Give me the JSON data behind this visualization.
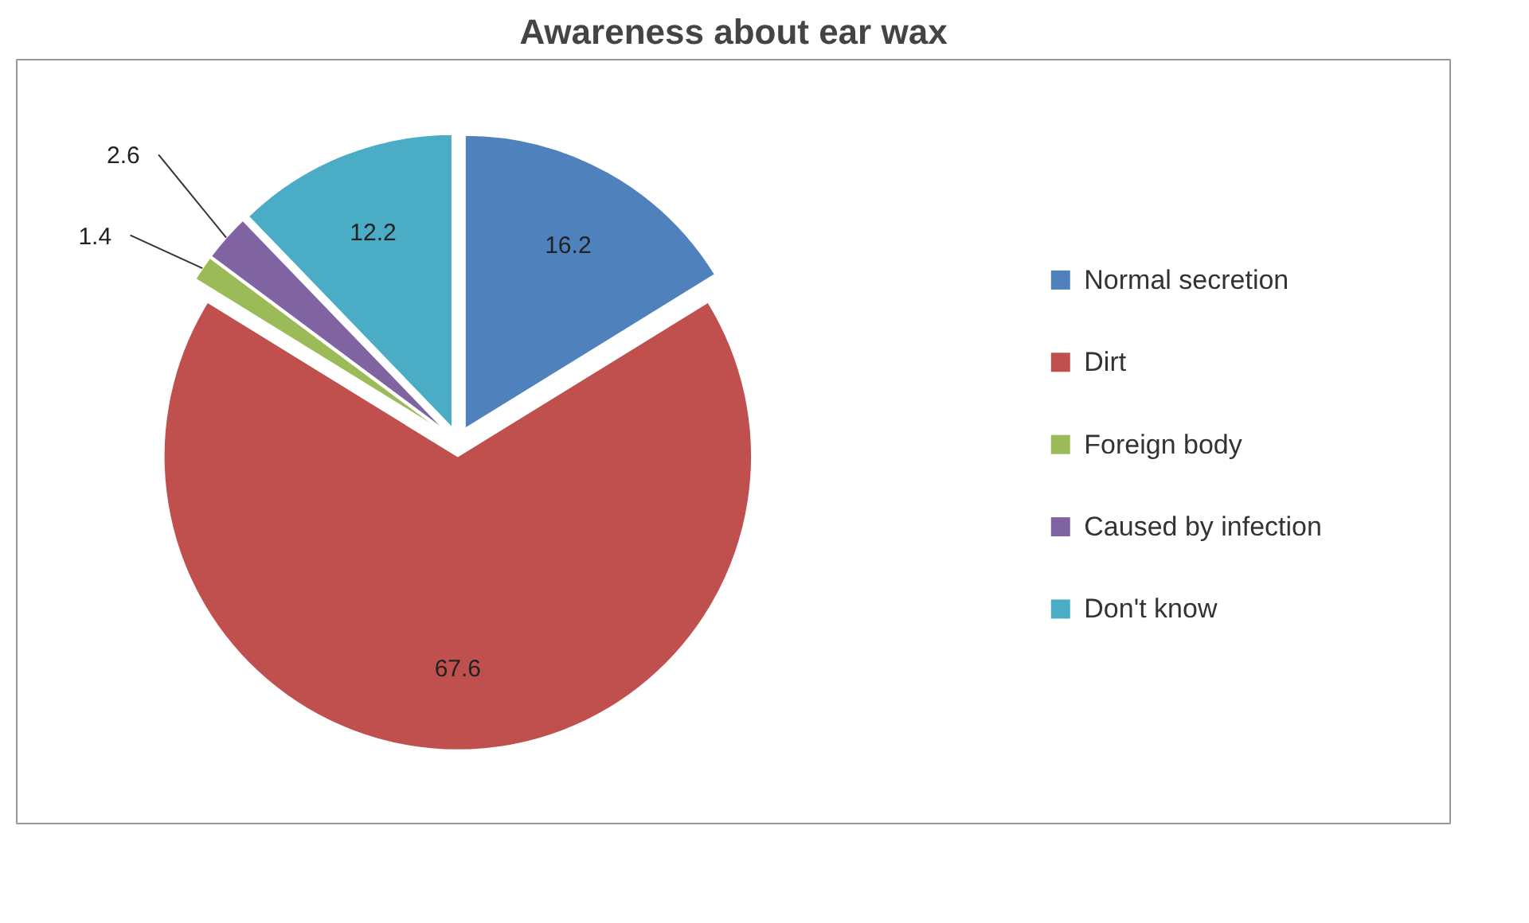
{
  "chart_data": {
    "type": "pie",
    "title": "Awareness about ear wax",
    "categories": [
      "Normal secretion",
      "Dirt",
      "Foreign body",
      "Caused by infection",
      "Don't know"
    ],
    "values": [
      16.2,
      67.6,
      1.4,
      2.6,
      12.2
    ],
    "colors": [
      "#4f81bd",
      "#c0504d",
      "#9bbb59",
      "#8064a2",
      "#4bacc6"
    ],
    "data_labels": true,
    "legend": "right"
  }
}
